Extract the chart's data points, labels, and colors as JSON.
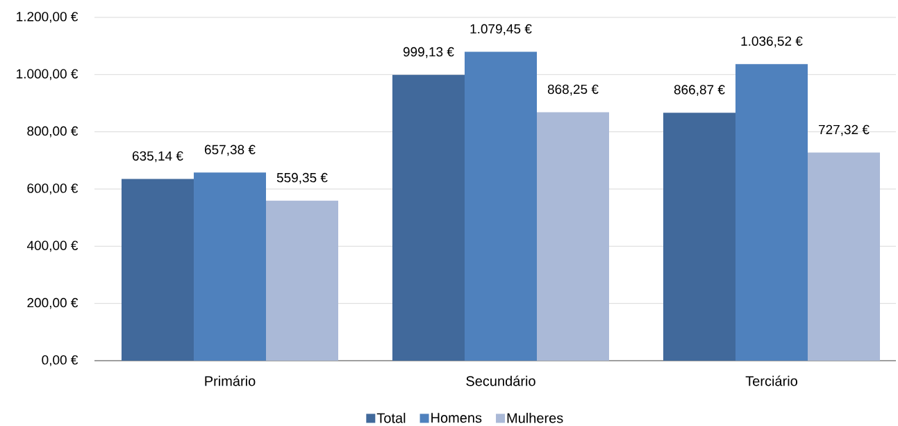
{
  "chart_data": {
    "type": "bar",
    "categories": [
      "Primário",
      "Secundário",
      "Terciário"
    ],
    "series": [
      {
        "name": "Total",
        "color": "#41699b",
        "values": [
          635.14,
          999.13,
          866.87
        ],
        "value_labels": [
          "635,14 €",
          "999,13 €",
          "866,87 €"
        ]
      },
      {
        "name": "Homens",
        "color": "#4f81bd",
        "values": [
          657.38,
          1079.45,
          1036.52
        ],
        "value_labels": [
          "657,38 €",
          "1.079,45 €",
          "1.036,52 €"
        ]
      },
      {
        "name": "Mulheres",
        "color": "#aab9d7",
        "values": [
          559.35,
          868.25,
          727.32
        ],
        "value_labels": [
          "559,35 €",
          "868,25 €",
          "727,32 €"
        ]
      }
    ],
    "ylim": [
      0,
      1200
    ],
    "yticks": [
      {
        "value": 0,
        "label": "0,00 €"
      },
      {
        "value": 200,
        "label": "200,00 €"
      },
      {
        "value": 400,
        "label": "400,00 €"
      },
      {
        "value": 600,
        "label": "600,00 €"
      },
      {
        "value": 800,
        "label": "800,00 €"
      },
      {
        "value": 1000,
        "label": "1.000,00 €"
      },
      {
        "value": 1200,
        "label": "1.200,00 €"
      }
    ],
    "grid": "y",
    "legend": "bottom"
  }
}
